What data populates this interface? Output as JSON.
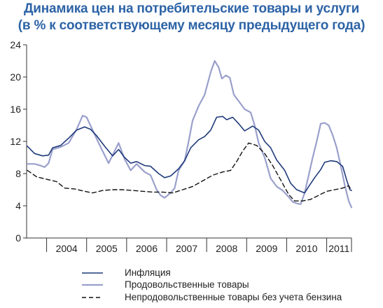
{
  "chart_data": {
    "type": "line",
    "title": "Динамика цен на потребительские товары и услуги",
    "subtitle": "(в % к соответствующему месяцу предыдущего года)",
    "xlabel": "",
    "ylabel": "",
    "x_start": 2003.5,
    "x_end": 2011.62,
    "ylim": [
      0,
      24
    ],
    "y_ticks": [
      0,
      4,
      8,
      12,
      16,
      20,
      24
    ],
    "x_tick_labels": [
      "2004",
      "2005",
      "2006",
      "2007",
      "2008",
      "2009",
      "2010",
      "2011"
    ],
    "grid": false,
    "legend_position": "bottom",
    "colors": {
      "inflation": "#1f3a7a",
      "food": "#9aa0cc",
      "nonfood": "#111111",
      "title": "#2d63a6",
      "axis": "#333333"
    },
    "series": [
      {
        "name": "Инфляция",
        "style": "solid",
        "points": [
          [
            2003.52,
            11.4
          ],
          [
            2003.7,
            10.5
          ],
          [
            2003.9,
            10.2
          ],
          [
            2004.05,
            10.3
          ],
          [
            2004.15,
            11.2
          ],
          [
            2004.35,
            11.5
          ],
          [
            2004.55,
            12.4
          ],
          [
            2004.75,
            13.4
          ],
          [
            2004.95,
            13.8
          ],
          [
            2005.1,
            13.5
          ],
          [
            2005.25,
            12.7
          ],
          [
            2005.45,
            11.4
          ],
          [
            2005.65,
            10.2
          ],
          [
            2005.8,
            11.0
          ],
          [
            2005.95,
            10.0
          ],
          [
            2006.1,
            9.3
          ],
          [
            2006.25,
            9.5
          ],
          [
            2006.45,
            9.0
          ],
          [
            2006.6,
            8.9
          ],
          [
            2006.8,
            8.0
          ],
          [
            2006.95,
            7.5
          ],
          [
            2007.1,
            7.7
          ],
          [
            2007.3,
            8.6
          ],
          [
            2007.45,
            9.6
          ],
          [
            2007.6,
            11.2
          ],
          [
            2007.8,
            12.2
          ],
          [
            2007.95,
            12.6
          ],
          [
            2008.1,
            13.4
          ],
          [
            2008.25,
            15.0
          ],
          [
            2008.4,
            15.1
          ],
          [
            2008.5,
            14.7
          ],
          [
            2008.65,
            15.0
          ],
          [
            2008.8,
            14.2
          ],
          [
            2008.95,
            13.3
          ],
          [
            2009.15,
            13.9
          ],
          [
            2009.3,
            13.4
          ],
          [
            2009.45,
            12.0
          ],
          [
            2009.6,
            11.2
          ],
          [
            2009.75,
            9.7
          ],
          [
            2009.95,
            8.4
          ],
          [
            2010.1,
            6.8
          ],
          [
            2010.25,
            6.0
          ],
          [
            2010.45,
            5.6
          ],
          [
            2010.55,
            6.4
          ],
          [
            2010.7,
            7.5
          ],
          [
            2010.85,
            8.5
          ],
          [
            2010.95,
            9.4
          ],
          [
            2011.1,
            9.6
          ],
          [
            2011.25,
            9.5
          ],
          [
            2011.4,
            8.9
          ],
          [
            2011.5,
            7.2
          ],
          [
            2011.58,
            6.0
          ],
          [
            2011.62,
            5.9
          ]
        ]
      },
      {
        "name": "Продовольственные товары",
        "style": "solid",
        "points": [
          [
            2003.52,
            9.2
          ],
          [
            2003.7,
            9.2
          ],
          [
            2003.85,
            9.0
          ],
          [
            2003.95,
            8.8
          ],
          [
            2004.05,
            9.3
          ],
          [
            2004.15,
            11.0
          ],
          [
            2004.35,
            11.3
          ],
          [
            2004.55,
            11.8
          ],
          [
            2004.75,
            13.5
          ],
          [
            2004.9,
            15.2
          ],
          [
            2005.0,
            15.0
          ],
          [
            2005.15,
            13.4
          ],
          [
            2005.3,
            11.8
          ],
          [
            2005.45,
            10.3
          ],
          [
            2005.55,
            9.3
          ],
          [
            2005.7,
            10.8
          ],
          [
            2005.8,
            11.8
          ],
          [
            2005.95,
            9.8
          ],
          [
            2006.1,
            8.4
          ],
          [
            2006.25,
            9.2
          ],
          [
            2006.45,
            8.2
          ],
          [
            2006.6,
            7.8
          ],
          [
            2006.75,
            6.0
          ],
          [
            2006.85,
            5.3
          ],
          [
            2006.95,
            5.0
          ],
          [
            2007.1,
            5.6
          ],
          [
            2007.2,
            6.2
          ],
          [
            2007.3,
            8.4
          ],
          [
            2007.45,
            9.6
          ],
          [
            2007.55,
            12.0
          ],
          [
            2007.65,
            14.6
          ],
          [
            2007.8,
            16.4
          ],
          [
            2007.95,
            17.8
          ],
          [
            2008.1,
            20.6
          ],
          [
            2008.2,
            22.0
          ],
          [
            2008.3,
            21.2
          ],
          [
            2008.38,
            19.8
          ],
          [
            2008.48,
            20.2
          ],
          [
            2008.58,
            19.9
          ],
          [
            2008.68,
            17.8
          ],
          [
            2008.8,
            17.0
          ],
          [
            2008.95,
            16.0
          ],
          [
            2009.1,
            15.6
          ],
          [
            2009.2,
            14.0
          ],
          [
            2009.3,
            11.8
          ],
          [
            2009.45,
            10.0
          ],
          [
            2009.6,
            7.4
          ],
          [
            2009.75,
            6.4
          ],
          [
            2009.9,
            5.9
          ],
          [
            2010.05,
            5.1
          ],
          [
            2010.15,
            4.5
          ],
          [
            2010.25,
            4.3
          ],
          [
            2010.35,
            4.2
          ],
          [
            2010.45,
            5.6
          ],
          [
            2010.55,
            7.8
          ],
          [
            2010.65,
            10.0
          ],
          [
            2010.75,
            12.0
          ],
          [
            2010.85,
            14.2
          ],
          [
            2010.95,
            14.3
          ],
          [
            2011.05,
            14.0
          ],
          [
            2011.15,
            12.8
          ],
          [
            2011.25,
            11.2
          ],
          [
            2011.35,
            9.0
          ],
          [
            2011.45,
            6.6
          ],
          [
            2011.55,
            4.6
          ],
          [
            2011.62,
            3.8
          ]
        ]
      },
      {
        "name": "Непродовольственные товары без учета бензина",
        "style": "dashed",
        "points": [
          [
            2003.52,
            8.4
          ],
          [
            2003.75,
            7.6
          ],
          [
            2004.0,
            7.3
          ],
          [
            2004.25,
            7.0
          ],
          [
            2004.45,
            6.2
          ],
          [
            2004.7,
            6.1
          ],
          [
            2004.95,
            5.8
          ],
          [
            2005.15,
            5.6
          ],
          [
            2005.4,
            5.9
          ],
          [
            2005.65,
            6.0
          ],
          [
            2005.9,
            6.0
          ],
          [
            2006.15,
            5.9
          ],
          [
            2006.4,
            5.8
          ],
          [
            2006.65,
            5.7
          ],
          [
            2006.9,
            5.7
          ],
          [
            2007.15,
            5.6
          ],
          [
            2007.4,
            6.0
          ],
          [
            2007.65,
            6.4
          ],
          [
            2007.9,
            7.1
          ],
          [
            2008.15,
            7.8
          ],
          [
            2008.4,
            8.2
          ],
          [
            2008.6,
            8.4
          ],
          [
            2008.75,
            9.5
          ],
          [
            2008.9,
            10.8
          ],
          [
            2009.05,
            11.8
          ],
          [
            2009.25,
            11.5
          ],
          [
            2009.45,
            10.5
          ],
          [
            2009.65,
            9.0
          ],
          [
            2009.85,
            7.2
          ],
          [
            2010.05,
            5.4
          ],
          [
            2010.2,
            4.6
          ],
          [
            2010.4,
            4.6
          ],
          [
            2010.6,
            4.8
          ],
          [
            2010.8,
            5.3
          ],
          [
            2011.0,
            5.8
          ],
          [
            2011.2,
            6.0
          ],
          [
            2011.4,
            6.2
          ],
          [
            2011.55,
            6.5
          ],
          [
            2011.62,
            5.9
          ]
        ]
      }
    ]
  }
}
